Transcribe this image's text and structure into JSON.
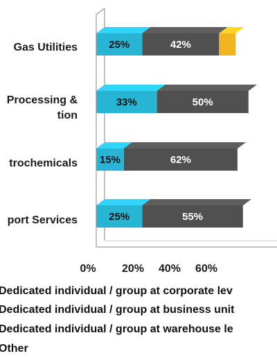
{
  "chart_data": {
    "type": "bar",
    "orientation": "horizontal",
    "stacked": true,
    "categories": [
      "Gas Utilities",
      "Processing &\ntion",
      "trochemicals",
      "port Services"
    ],
    "series": [
      {
        "name": "Dedicated individual / group at corporate lev",
        "values": [
          25,
          33,
          15,
          25
        ],
        "color": "#28b5d4",
        "label_color": "#111111"
      },
      {
        "name": "Dedicated individual / group at business unit",
        "values": [
          42,
          50,
          62,
          55
        ],
        "color": "#505050",
        "label_color": "#ffffff"
      },
      {
        "name": "Dedicated individual / group at warehouse le",
        "values": [
          9,
          0,
          0,
          0
        ],
        "color": "#f2b51f",
        "label_color": "#111111"
      },
      {
        "name": "Other",
        "values": [
          0,
          0,
          0,
          0
        ],
        "color": "#bdbdbd",
        "label_color": "#111111"
      }
    ],
    "data_labels": [
      [
        "25%",
        "42%",
        "",
        ""
      ],
      [
        "33%",
        "50%",
        "",
        ""
      ],
      [
        "15%",
        "62%",
        "",
        ""
      ],
      [
        "25%",
        "55%",
        "",
        ""
      ]
    ],
    "x_ticks": [
      "0%",
      "20%",
      "40%",
      "60%"
    ],
    "xlim": [
      0,
      100
    ],
    "grid": false,
    "legend_position": "bottom"
  }
}
